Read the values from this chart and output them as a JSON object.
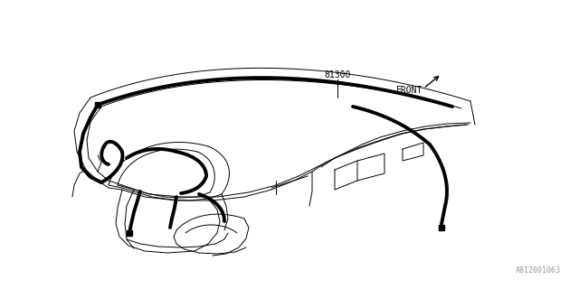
{
  "bg_color": "#ffffff",
  "line_color": "#000000",
  "thick_lw": 2.8,
  "thin_lw": 0.7,
  "label_81300": "81300",
  "label_front": "FRONT",
  "label_part_num": "A812001063",
  "fig_width": 6.4,
  "fig_height": 3.2,
  "dpi": 100
}
